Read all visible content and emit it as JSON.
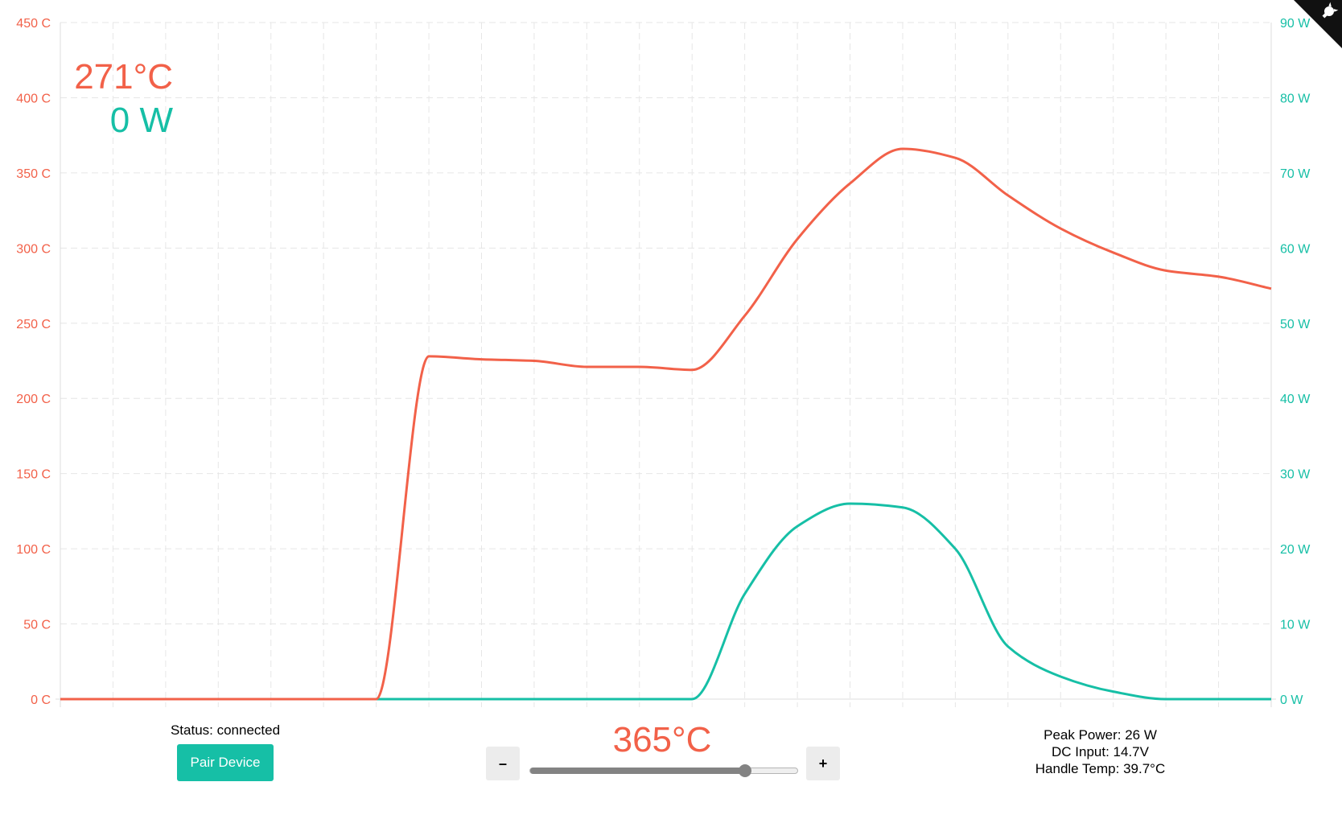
{
  "display": {
    "current_temp": "271°C",
    "current_power": "0 W"
  },
  "status": {
    "text": "Status: connected"
  },
  "pair_button": {
    "label": "Pair Device"
  },
  "setpoint": {
    "value_text": "365°C",
    "slider_fraction": 0.8,
    "decrement_label": "–",
    "increment_label": "+"
  },
  "stats": {
    "peak_power": "Peak Power: 26 W",
    "dc_input": "DC Input: 14.7V",
    "handle_temp": "Handle Temp: 39.7°C"
  },
  "colors": {
    "temperature": "#f26149",
    "power": "#16bfa6",
    "grid": "#e6e6e6",
    "button": "#16bfa6"
  },
  "icons": {
    "corner": "github-corner-icon"
  },
  "chart_data": {
    "type": "line",
    "x": [
      0,
      1,
      2,
      3,
      4,
      5,
      6,
      7,
      8,
      9,
      10,
      11,
      12,
      13,
      14,
      15,
      16,
      17,
      18,
      19,
      20,
      21,
      22,
      23
    ],
    "y_axis_left": {
      "ticks": [
        "0 C",
        "50 C",
        "100 C",
        "150 C",
        "200 C",
        "250 C",
        "300 C",
        "350 C",
        "400 C",
        "450 C"
      ],
      "ylim": [
        0,
        450
      ]
    },
    "y_axis_right": {
      "ticks": [
        "0 W",
        "10 W",
        "20 W",
        "30 W",
        "40 W",
        "50 W",
        "60 W",
        "70 W",
        "80 W",
        "90 W"
      ],
      "ylim": [
        0,
        90
      ]
    },
    "grid": true,
    "series": [
      {
        "axis": "left",
        "color": "#f26149",
        "values": [
          0,
          0,
          0,
          0,
          0,
          0,
          0,
          228,
          226,
          225,
          221,
          221,
          219,
          255,
          306,
          343,
          366,
          360,
          335,
          313,
          297,
          285,
          281,
          273
        ]
      },
      {
        "axis": "right",
        "color": "#16bfa6",
        "values": [
          0,
          0,
          0,
          0,
          0,
          0,
          0,
          0,
          0,
          0,
          0,
          0,
          0,
          14,
          23,
          26,
          25.5,
          20,
          7,
          3,
          1,
          0,
          0,
          0
        ]
      }
    ]
  }
}
